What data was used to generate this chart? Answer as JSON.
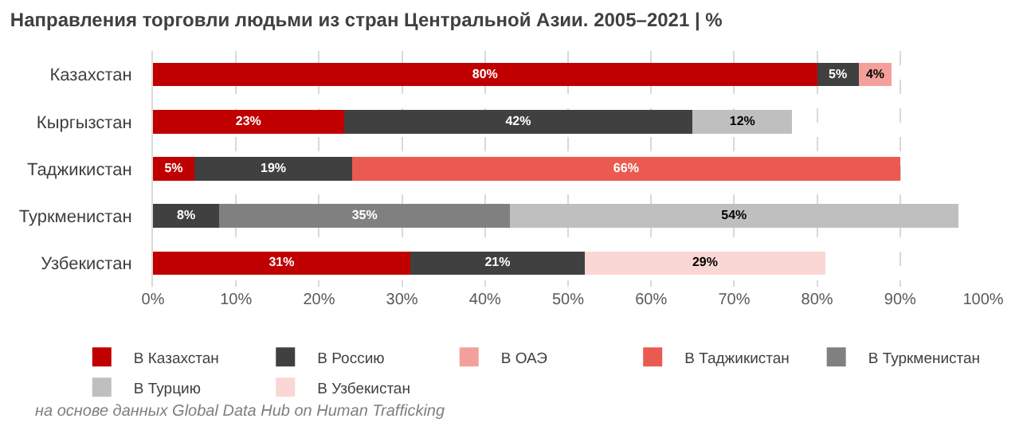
{
  "chart_data": {
    "type": "bar",
    "orientation": "horizontal",
    "stacked": true,
    "title": "Направления торговли людьми из стран Центральной Азии. 2005–2021 | %",
    "categories": [
      "Казахстан",
      "Кыргызстан",
      "Таджикистан",
      "Туркменистан",
      "Узбекистан"
    ],
    "series": [
      {
        "name": "В Казахстан",
        "color": "#c00000",
        "values": [
          80,
          23,
          5,
          null,
          31
        ],
        "value_labels": [
          "80%",
          "23%",
          "5%",
          null,
          "31%"
        ]
      },
      {
        "name": "В Россию",
        "color": "#404040",
        "values": [
          5,
          42,
          19,
          8,
          21
        ],
        "value_labels": [
          "5%",
          "42%",
          "19%",
          "8%",
          "21%"
        ]
      },
      {
        "name": "В ОАЭ",
        "color": "#f4a09a",
        "values": [
          4,
          null,
          null,
          null,
          null
        ],
        "value_labels": [
          "4%",
          null,
          null,
          null,
          null
        ]
      },
      {
        "name": "В Таджикистан",
        "color": "#eb5a50",
        "values": [
          null,
          null,
          66,
          null,
          null
        ],
        "value_labels": [
          null,
          null,
          "66%",
          null,
          null
        ]
      },
      {
        "name": "В Туркменистан",
        "color": "#808080",
        "values": [
          null,
          null,
          null,
          35,
          null
        ],
        "value_labels": [
          null,
          null,
          null,
          "35%",
          null
        ]
      },
      {
        "name": "В Турцию",
        "color": "#bfbfbf",
        "values": [
          null,
          12,
          null,
          54,
          null
        ],
        "value_labels": [
          null,
          "12%",
          null,
          "54%",
          null
        ]
      },
      {
        "name": "В Узбекистан",
        "color": "#fad7d5",
        "values": [
          null,
          null,
          null,
          null,
          29
        ],
        "value_labels": [
          null,
          null,
          null,
          null,
          "29%"
        ]
      }
    ],
    "xlim": [
      0,
      100
    ],
    "xticks": [
      {
        "value": 0,
        "label": "0%"
      },
      {
        "value": 10,
        "label": "10%"
      },
      {
        "value": 20,
        "label": "20%"
      },
      {
        "value": 30,
        "label": "30%"
      },
      {
        "value": 40,
        "label": "40%"
      },
      {
        "value": 50,
        "label": "50%"
      },
      {
        "value": 60,
        "label": "60%"
      },
      {
        "value": 70,
        "label": "70%"
      },
      {
        "value": 80,
        "label": "80%"
      },
      {
        "value": 90,
        "label": "90%"
      },
      {
        "value": 100,
        "label": "100%"
      }
    ],
    "grid": "x",
    "legend": "bottom",
    "annotations": [
      "на основе данных Global Data Hub on Human Trafficking"
    ]
  }
}
